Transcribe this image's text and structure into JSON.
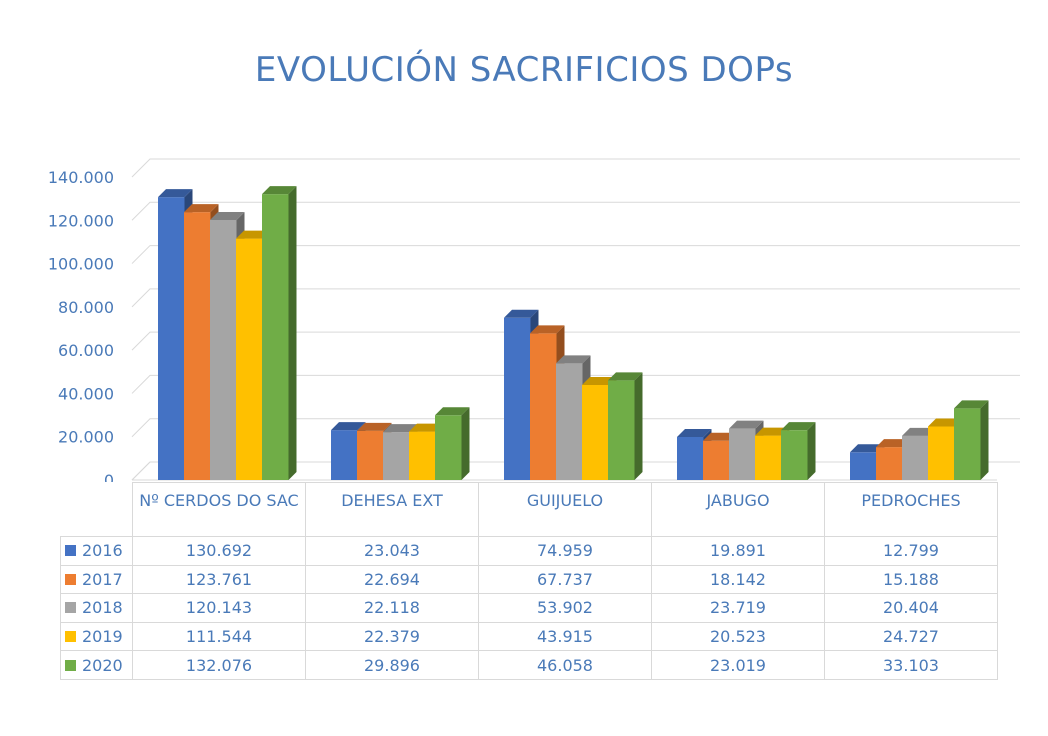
{
  "chart_data": {
    "type": "bar",
    "title": "EVOLUCIÓN SACRIFICIOS DOPs",
    "categories": [
      "Nº CERDOS DO SAC",
      "DEHESA EXT",
      "GUIJUELO",
      "JABUGO",
      "PEDROCHES"
    ],
    "series": [
      {
        "name": "2016",
        "color": "#4472c4",
        "values": [
          130692,
          23043,
          74959,
          19891,
          12799
        ],
        "labels": [
          "130.692",
          "23.043",
          "74.959",
          "19.891",
          "12.799"
        ]
      },
      {
        "name": "2017",
        "color": "#ed7d31",
        "values": [
          123761,
          22694,
          67737,
          18142,
          15188
        ],
        "labels": [
          "123.761",
          "22.694",
          "67.737",
          "18.142",
          "15.188"
        ]
      },
      {
        "name": "2018",
        "color": "#a5a5a5",
        "values": [
          120143,
          22118,
          53902,
          23719,
          20404
        ],
        "labels": [
          "120.143",
          "22.118",
          "53.902",
          "23.719",
          "20.404"
        ]
      },
      {
        "name": "2019",
        "color": "#ffc000",
        "values": [
          111544,
          22379,
          43915,
          20523,
          24727
        ],
        "labels": [
          "111.544",
          "22.379",
          "43.915",
          "20.523",
          "24.727"
        ]
      },
      {
        "name": "2020",
        "color": "#70ad47",
        "values": [
          132076,
          29896,
          46058,
          23019,
          33103
        ],
        "labels": [
          "132.076",
          "29.896",
          "46.058",
          "23.019",
          "33.103"
        ]
      }
    ],
    "yticks": [
      0,
      20000,
      40000,
      60000,
      80000,
      100000,
      120000,
      140000
    ],
    "ytick_labels": [
      "0",
      "20.000",
      "40.000",
      "60.000",
      "80.000",
      "100.000",
      "120.000",
      "140.000"
    ],
    "ylim": [
      0,
      140000
    ],
    "grid": true,
    "style": "3d-clustered-column",
    "data_table": true,
    "xlabel": "",
    "ylabel": ""
  }
}
